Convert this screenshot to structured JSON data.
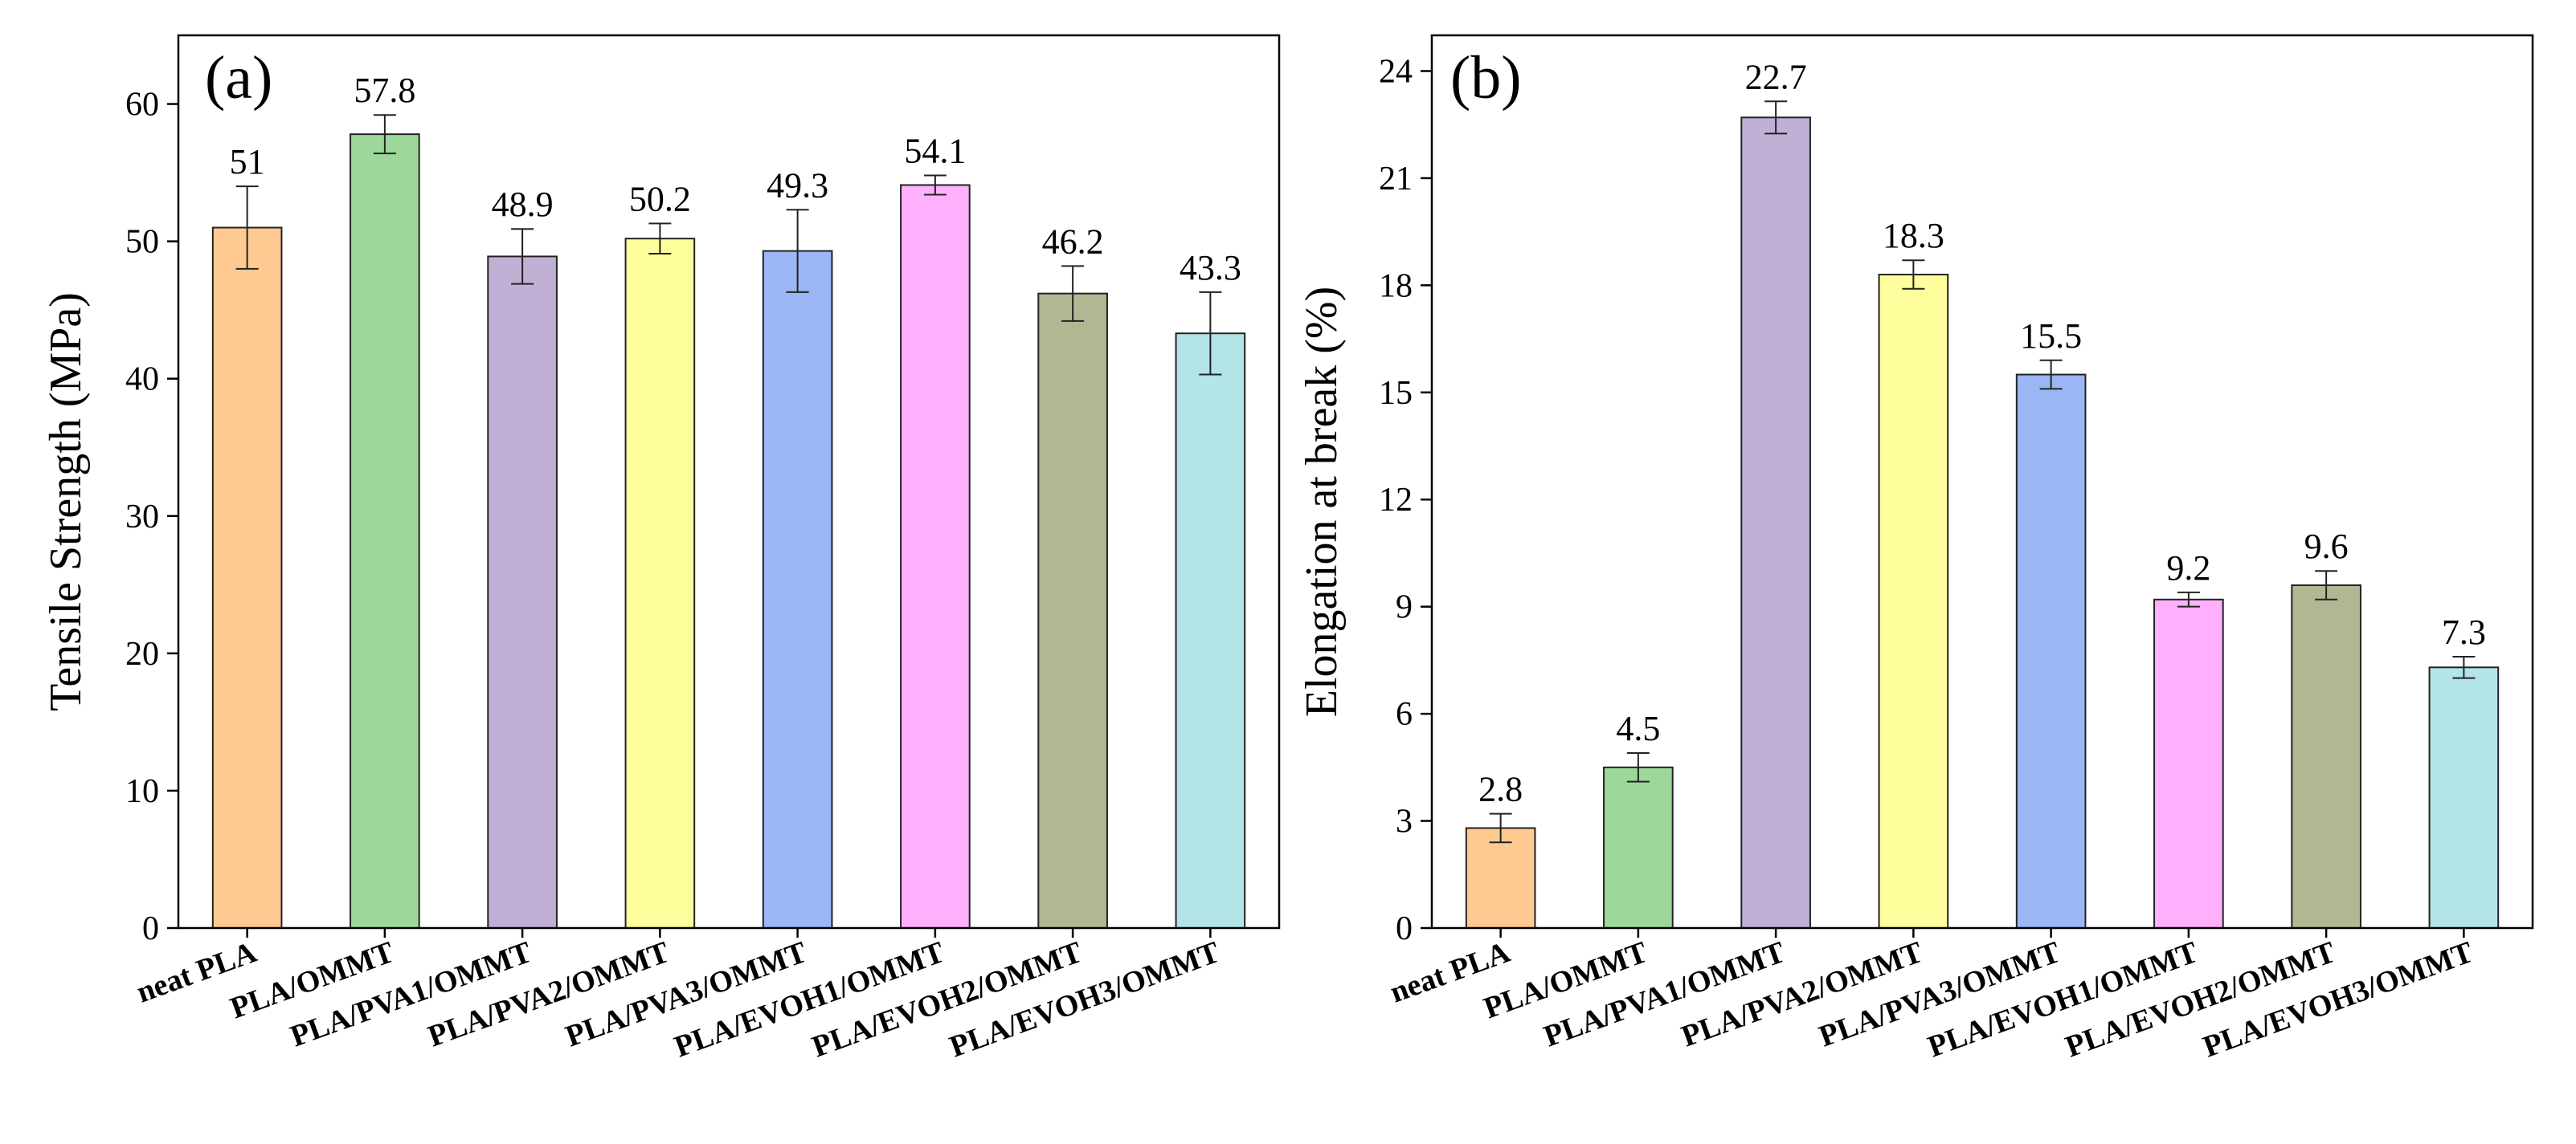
{
  "chart_data": [
    {
      "type": "bar",
      "panel_label": "(a)",
      "title": "",
      "xlabel": "",
      "ylabel": "Tensile Strength (MPa)",
      "ylim": [
        0,
        65
      ],
      "yticks": [
        0,
        10,
        20,
        30,
        40,
        50,
        60
      ],
      "categories": [
        "neat PLA",
        "PLA/OMMT",
        "PLA/PVA1/OMMT",
        "PLA/PVA2/OMMT",
        "PLA/PVA3/OMMT",
        "PLA/EVOH1/OMMT",
        "PLA/EVOH2/OMMT",
        "PLA/EVOH3/OMMT"
      ],
      "values": [
        51,
        57.8,
        48.9,
        50.2,
        49.3,
        54.1,
        46.2,
        43.3
      ],
      "value_labels": [
        "51",
        "57.8",
        "48.9",
        "50.2",
        "49.3",
        "54.1",
        "46.2",
        "43.3"
      ],
      "errors": [
        3.0,
        1.4,
        2.0,
        1.1,
        3.0,
        0.7,
        2.0,
        3.0
      ],
      "colors": [
        "#ffc992",
        "#9dd89a",
        "#c1b0d6",
        "#fffe9c",
        "#9ab6f5",
        "#ffb0fd",
        "#b2b793",
        "#b2e4e8"
      ],
      "grid": false
    },
    {
      "type": "bar",
      "panel_label": "(b)",
      "title": "",
      "xlabel": "",
      "ylabel": "Elongation at break (%)",
      "ylim": [
        0,
        25
      ],
      "yticks": [
        0,
        3,
        6,
        9,
        12,
        15,
        18,
        21,
        24
      ],
      "categories": [
        "neat PLA",
        "PLA/OMMT",
        "PLA/PVA1/OMMT",
        "PLA/PVA2/OMMT",
        "PLA/PVA3/OMMT",
        "PLA/EVOH1/OMMT",
        "PLA/EVOH2/OMMT",
        "PLA/EVOH3/OMMT"
      ],
      "values": [
        2.8,
        4.5,
        22.7,
        18.3,
        15.5,
        9.2,
        9.6,
        7.3
      ],
      "value_labels": [
        "2.8",
        "4.5",
        "22.7",
        "18.3",
        "15.5",
        "9.2",
        "9.6",
        "7.3"
      ],
      "errors": [
        0.4,
        0.4,
        0.45,
        0.4,
        0.4,
        0.2,
        0.4,
        0.3
      ],
      "colors": [
        "#ffc992",
        "#9dd89a",
        "#c1b0d6",
        "#fffe9c",
        "#9ab6f5",
        "#ffb0fd",
        "#b2b793",
        "#b2e4e8"
      ],
      "grid": false
    }
  ]
}
